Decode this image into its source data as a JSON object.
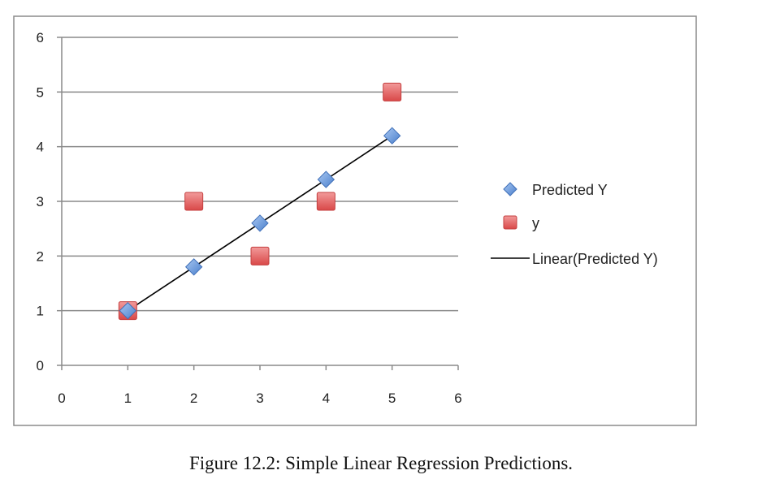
{
  "caption": "Figure 12.2: Simple Linear Regression Predictions.",
  "chart_data": {
    "type": "scatter",
    "title": "",
    "xlabel": "",
    "ylabel": "",
    "xlim": [
      0,
      6
    ],
    "ylim": [
      0,
      6
    ],
    "xticks": [
      "0",
      "1",
      "2",
      "3",
      "4",
      "5",
      "6"
    ],
    "yticks": [
      "0",
      "1",
      "2",
      "3",
      "4",
      "5",
      "6"
    ],
    "grid": "horizontal",
    "legend_position": "right",
    "series": [
      {
        "name": "Predicted Y",
        "marker": "diamond",
        "color": "#5b8fd6",
        "x": [
          1,
          2,
          3,
          4,
          5
        ],
        "y": [
          1.0,
          1.8,
          2.6,
          3.4,
          4.2
        ]
      },
      {
        "name": "y",
        "marker": "square",
        "color": "#e45a5a",
        "x": [
          1,
          2,
          3,
          4,
          5
        ],
        "y": [
          1,
          3,
          2,
          3,
          5
        ]
      },
      {
        "name": "Linear(Predicted Y)",
        "marker": "line",
        "color": "#000000",
        "x": [
          1,
          5
        ],
        "y": [
          1.0,
          4.2
        ]
      }
    ]
  }
}
